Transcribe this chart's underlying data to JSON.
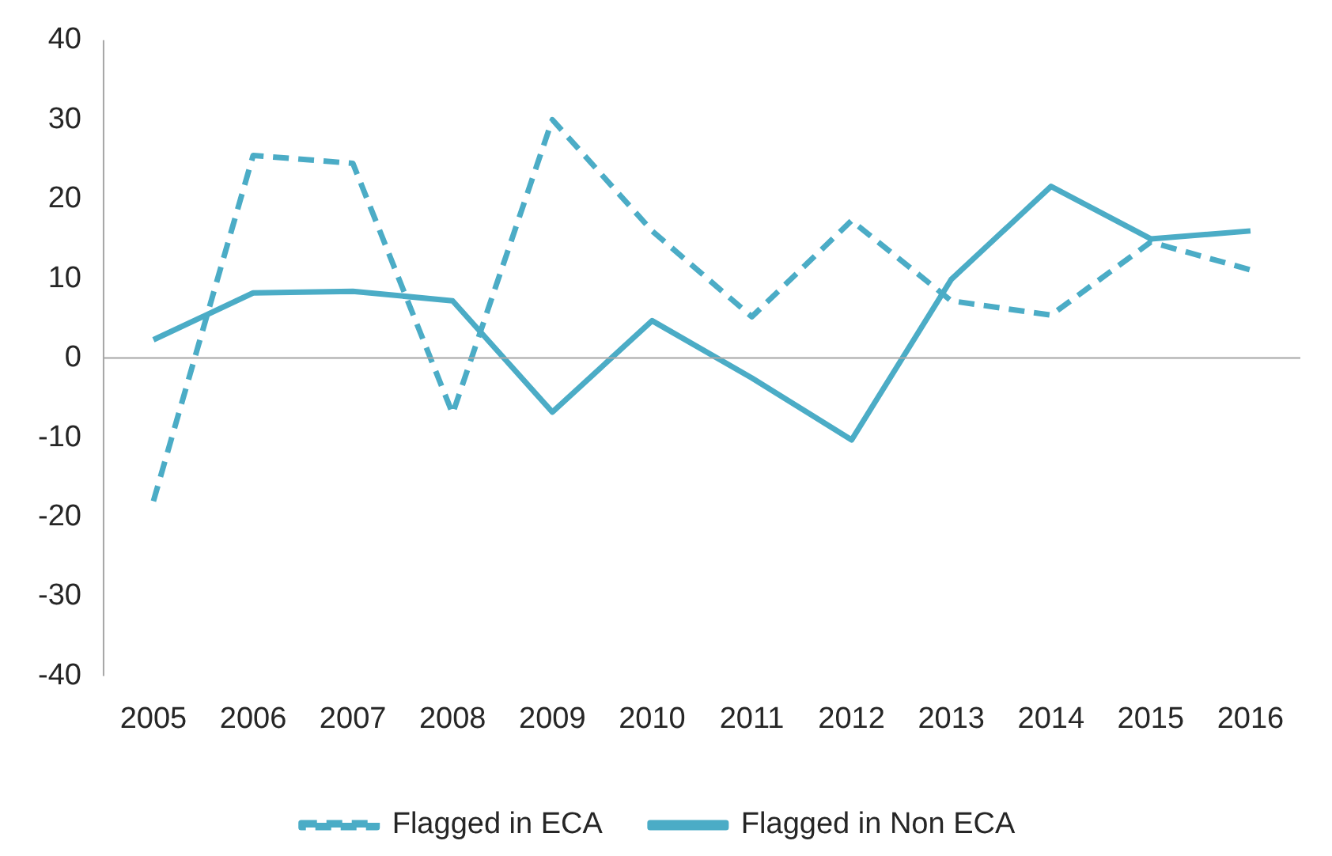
{
  "chart_data": {
    "type": "line",
    "categories": [
      "2005",
      "2006",
      "2007",
      "2008",
      "2009",
      "2010",
      "2011",
      "2012",
      "2013",
      "2014",
      "2015",
      "2016"
    ],
    "series": [
      {
        "name": "Flagged in ECA",
        "color": "#4bacc6",
        "line_style": "dashed",
        "values": [
          -18,
          25.5,
          24.5,
          -7,
          30,
          16,
          5.2,
          17.3,
          7.2,
          5.4,
          14.6,
          11.1
        ]
      },
      {
        "name": "Flagged in Non ECA",
        "color": "#4bacc6",
        "line_style": "solid",
        "values": [
          2.3,
          8.2,
          8.4,
          7.2,
          -6.8,
          4.7,
          -2.5,
          -10.3,
          9.9,
          21.6,
          15,
          16
        ]
      }
    ],
    "ylim": [
      -40,
      40
    ],
    "yticks": [
      -40,
      -30,
      -20,
      -10,
      0,
      10,
      20,
      30,
      40
    ],
    "ref_lines": [
      {
        "axis": "y",
        "value": 0,
        "color": "#a6a6a6"
      }
    ],
    "grid": false,
    "legend": "bottom",
    "marker": "none"
  }
}
